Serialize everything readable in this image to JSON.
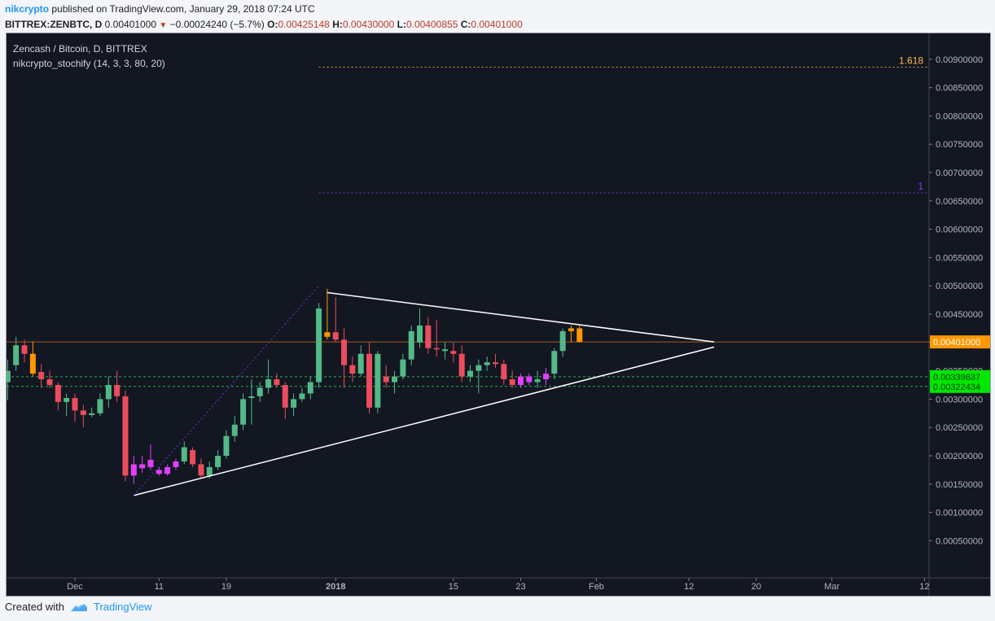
{
  "header": {
    "user": "nikcrypto",
    "published": "published on TradingView.com, January 29, 2018 07:24 UTC",
    "symbol": "BITTREX:ZENBTC, D",
    "last": "0.00401000",
    "change_arrow": "▼",
    "change": "−0.00024240 (−5.7%)",
    "o_label": "O:",
    "o": "0.00425148",
    "h_label": "H:",
    "h": "0.00430000",
    "l_label": "L:",
    "l": "0.00400855",
    "c_label": "C:",
    "c": "0.00401000"
  },
  "footer": {
    "created_with": "Created with",
    "brand": "TradingView"
  },
  "colors": {
    "background": "#131722",
    "up": "#53b987",
    "down": "#eb4d5c",
    "magenta": "#e040fb",
    "orange": "#ff9800",
    "axis_text": "#b2b5be",
    "fib_1618": "#ffb74d",
    "fib_1": "#7b3ff2",
    "green_level": "#2ecc40",
    "price_line": "#ff8a1f"
  },
  "chart_data": {
    "type": "candlestick",
    "title": "Zencash / Bitcoin, D, BITTREX",
    "indicator": "nikcrypto_stochify (14, 3, 3, 80, 20)",
    "ylim": [
      0.0,
      0.0095
    ],
    "y_ticks": [
      "0.00050000",
      "0.00100000",
      "0.00150000",
      "0.00200000",
      "0.00250000",
      "0.00300000",
      "0.00350000",
      "0.00400000",
      "0.00450000",
      "0.00500000",
      "0.00550000",
      "0.00600000",
      "0.00650000",
      "0.00700000",
      "0.00750000",
      "0.00800000",
      "0.00850000",
      "0.00900000"
    ],
    "x_ticks": [
      {
        "label": "Dec",
        "day": 0
      },
      {
        "label": "11",
        "day": 10
      },
      {
        "label": "19",
        "day": 18
      },
      {
        "label": "2018",
        "day": 31
      },
      {
        "label": "15",
        "day": 45
      },
      {
        "label": "23",
        "day": 53
      },
      {
        "label": "Feb",
        "day": 62
      },
      {
        "label": "12",
        "day": 73
      },
      {
        "label": "20",
        "day": 81
      },
      {
        "label": "Mar",
        "day": 90
      },
      {
        "label": "12",
        "day": 101
      }
    ],
    "candles": [
      [
        -8,
        0.0033,
        0.0037,
        0.00298,
        0.0035,
        "up"
      ],
      [
        -7,
        0.0036,
        0.0041,
        0.0035,
        0.00395,
        "up"
      ],
      [
        -6,
        0.00395,
        0.00405,
        0.00365,
        0.0038,
        "down"
      ],
      [
        -5,
        0.0038,
        0.00402,
        0.0034,
        0.00345,
        "orange"
      ],
      [
        -4,
        0.00348,
        0.00362,
        0.0032,
        0.00335,
        "down"
      ],
      [
        -3,
        0.00335,
        0.0035,
        0.0032,
        0.00325,
        "down"
      ],
      [
        -2,
        0.00325,
        0.0033,
        0.0028,
        0.00295,
        "down"
      ],
      [
        -1,
        0.00295,
        0.0031,
        0.0027,
        0.00302,
        "up"
      ],
      [
        0,
        0.00302,
        0.0031,
        0.0026,
        0.0028,
        "down"
      ],
      [
        1,
        0.0028,
        0.0029,
        0.0025,
        0.00272,
        "down"
      ],
      [
        2,
        0.00272,
        0.00285,
        0.00268,
        0.00275,
        "up"
      ],
      [
        3,
        0.00275,
        0.0031,
        0.0027,
        0.003,
        "up"
      ],
      [
        4,
        0.003,
        0.0034,
        0.00285,
        0.00325,
        "up"
      ],
      [
        5,
        0.00325,
        0.0035,
        0.00295,
        0.00305,
        "down"
      ],
      [
        6,
        0.00305,
        0.00315,
        0.00155,
        0.00165,
        "down"
      ],
      [
        7,
        0.00165,
        0.002,
        0.0015,
        0.00185,
        "magenta"
      ],
      [
        8,
        0.00185,
        0.002,
        0.0017,
        0.00178,
        "magenta"
      ],
      [
        9,
        0.0018,
        0.0022,
        0.00175,
        0.00193,
        "magenta"
      ],
      [
        10,
        0.00175,
        0.0018,
        0.00165,
        0.00168,
        "magenta"
      ],
      [
        11,
        0.00168,
        0.00185,
        0.00165,
        0.0018,
        "magenta"
      ],
      [
        12,
        0.0018,
        0.00195,
        0.00175,
        0.0019,
        "magenta"
      ],
      [
        13,
        0.0019,
        0.00225,
        0.00185,
        0.00215,
        "up"
      ],
      [
        14,
        0.0021,
        0.00215,
        0.0018,
        0.00185,
        "down"
      ],
      [
        15,
        0.00185,
        0.00195,
        0.0016,
        0.00165,
        "down"
      ],
      [
        16,
        0.00165,
        0.0019,
        0.0016,
        0.0018,
        "up"
      ],
      [
        17,
        0.0018,
        0.0021,
        0.00175,
        0.002,
        "up"
      ],
      [
        18,
        0.002,
        0.00245,
        0.00195,
        0.00235,
        "up"
      ],
      [
        19,
        0.00235,
        0.0027,
        0.00225,
        0.00255,
        "up"
      ],
      [
        20,
        0.00255,
        0.0031,
        0.00245,
        0.003,
        "up"
      ],
      [
        21,
        0.00302,
        0.00335,
        0.00255,
        0.00305,
        "up"
      ],
      [
        22,
        0.00305,
        0.0033,
        0.00295,
        0.0032,
        "up"
      ],
      [
        23,
        0.0032,
        0.0037,
        0.0031,
        0.00335,
        "up"
      ],
      [
        24,
        0.00335,
        0.00345,
        0.0032,
        0.00325,
        "down"
      ],
      [
        25,
        0.00325,
        0.0033,
        0.00265,
        0.00285,
        "down"
      ],
      [
        26,
        0.00285,
        0.0031,
        0.0027,
        0.003,
        "up"
      ],
      [
        27,
        0.003,
        0.0032,
        0.00295,
        0.0031,
        "up"
      ],
      [
        28,
        0.0031,
        0.0034,
        0.003,
        0.0033,
        "up"
      ],
      [
        29,
        0.0033,
        0.0047,
        0.0032,
        0.0046,
        "up"
      ],
      [
        30,
        0.0041,
        0.00495,
        0.00405,
        0.00418,
        "orange"
      ],
      [
        31,
        0.00418,
        0.0048,
        0.004,
        0.00405,
        "down"
      ],
      [
        32,
        0.00405,
        0.00425,
        0.0032,
        0.0036,
        "down"
      ],
      [
        33,
        0.0036,
        0.00375,
        0.0033,
        0.00345,
        "down"
      ],
      [
        34,
        0.00345,
        0.00395,
        0.0034,
        0.0038,
        "up"
      ],
      [
        35,
        0.0038,
        0.004,
        0.00275,
        0.00285,
        "down"
      ],
      [
        36,
        0.00285,
        0.00385,
        0.00275,
        0.0038,
        "up"
      ],
      [
        37,
        0.0034,
        0.0036,
        0.0032,
        0.0033,
        "down"
      ],
      [
        38,
        0.0033,
        0.0035,
        0.0031,
        0.0034,
        "up"
      ],
      [
        39,
        0.0034,
        0.0038,
        0.00335,
        0.0037,
        "up"
      ],
      [
        40,
        0.0037,
        0.0043,
        0.0036,
        0.0042,
        "up"
      ],
      [
        41,
        0.004,
        0.0046,
        0.0039,
        0.0043,
        "up"
      ],
      [
        42,
        0.0043,
        0.00445,
        0.0038,
        0.0039,
        "down"
      ],
      [
        43,
        0.0039,
        0.0044,
        0.00375,
        0.00388,
        "down"
      ],
      [
        44,
        0.00388,
        0.004,
        0.0037,
        0.00385,
        "up"
      ],
      [
        45,
        0.00385,
        0.004,
        0.00365,
        0.0038,
        "down"
      ],
      [
        46,
        0.0038,
        0.00395,
        0.0033,
        0.0034,
        "down"
      ],
      [
        47,
        0.0034,
        0.0036,
        0.0033,
        0.0035,
        "up"
      ],
      [
        48,
        0.0035,
        0.0037,
        0.0031,
        0.0036,
        "up"
      ],
      [
        49,
        0.0036,
        0.00375,
        0.0035,
        0.00365,
        "up"
      ],
      [
        50,
        0.00365,
        0.0038,
        0.00355,
        0.00362,
        "down"
      ],
      [
        51,
        0.00362,
        0.0037,
        0.00325,
        0.00335,
        "down"
      ],
      [
        52,
        0.00335,
        0.0035,
        0.0032,
        0.00325,
        "down"
      ],
      [
        53,
        0.00325,
        0.00345,
        0.0032,
        0.0034,
        "magenta"
      ],
      [
        54,
        0.0034,
        0.00345,
        0.00325,
        0.0033,
        "magenta"
      ],
      [
        55,
        0.0033,
        0.0035,
        0.0032,
        0.00335,
        "up"
      ],
      [
        56,
        0.00335,
        0.00355,
        0.00325,
        0.00345,
        "magenta"
      ],
      [
        57,
        0.00345,
        0.0039,
        0.00335,
        0.00385,
        "up"
      ],
      [
        58,
        0.00385,
        0.00425,
        0.00375,
        0.0042,
        "up"
      ],
      [
        59,
        0.0042,
        0.0043,
        0.004,
        0.00425,
        "orange"
      ],
      [
        60,
        0.00425,
        0.0043,
        0.004,
        0.00401,
        "orange"
      ]
    ],
    "trendlines": [
      {
        "name": "triangle-upper",
        "points": [
          [
            30,
            0.00488
          ],
          [
            76,
            0.00401
          ]
        ]
      },
      {
        "name": "triangle-lower",
        "points": [
          [
            7,
            0.0013
          ],
          [
            76,
            0.00392
          ]
        ]
      },
      {
        "name": "fib-anchor",
        "points": [
          [
            7,
            0.0013
          ],
          [
            29,
            0.005
          ]
        ]
      }
    ],
    "levels": [
      {
        "name": "fib-1618",
        "value": 0.00886,
        "label": "1.618",
        "start_day": 29
      },
      {
        "name": "fib-1",
        "value": 0.00664,
        "label": "1",
        "start_day": 29
      },
      {
        "name": "price-line",
        "value": 0.00401,
        "label": "0.00401000"
      },
      {
        "name": "level-green-1",
        "value": 0.0033963,
        "label": "0.00339637"
      },
      {
        "name": "level-green-2",
        "value": 0.0032243,
        "label": "0.00322434"
      }
    ]
  }
}
